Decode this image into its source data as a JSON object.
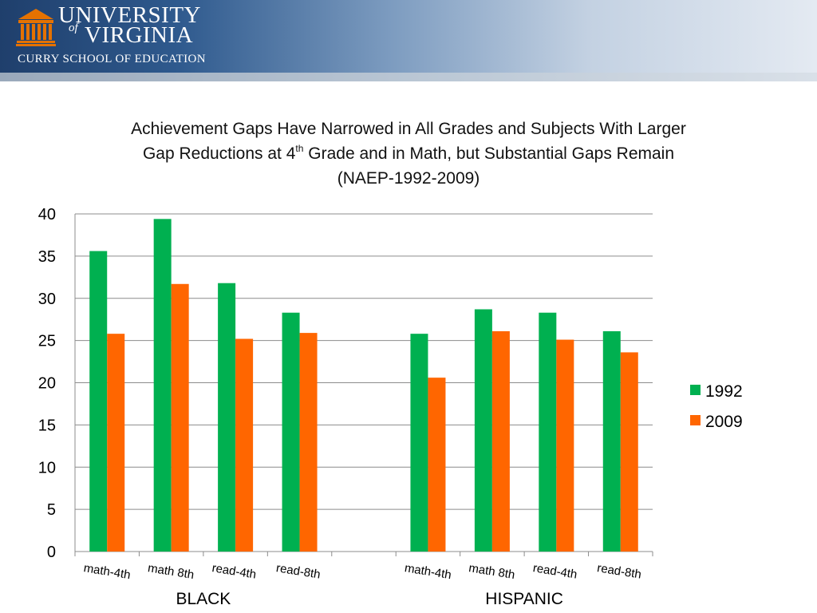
{
  "header": {
    "logo_line1": "UNIVERSITY",
    "logo_of": "of",
    "logo_line2": "VIRGINIA",
    "logo_school": "CURRY SCHOOL OF EDUCATION",
    "colors": {
      "navy": "#1f3f6c",
      "orange": "#e57200"
    }
  },
  "title": {
    "line1": "Achievement Gaps Have Narrowed in All Grades and Subjects With Larger",
    "line2_pre": "Gap Reductions at 4",
    "line2_sup": "th",
    "line2_post": " Grade and in Math, but Substantial Gaps Remain",
    "line3": "(NAEP-1992-2009)"
  },
  "chart_data": {
    "type": "bar",
    "categories": [
      "math-4th",
      "math 8th",
      "read-4th",
      "read-8th",
      "",
      "math-4th",
      "math 8th",
      "read-4th",
      "read-8th"
    ],
    "groups": [
      {
        "label": "BLACK",
        "category_indices": [
          0,
          1,
          2,
          3
        ]
      },
      {
        "label": "HISPANIC",
        "category_indices": [
          5,
          6,
          7,
          8
        ]
      }
    ],
    "series": [
      {
        "name": "1992",
        "color": "#00b050",
        "values": [
          35.6,
          39.4,
          31.8,
          28.3,
          null,
          25.8,
          28.7,
          28.3,
          26.1
        ]
      },
      {
        "name": "2009",
        "color": "#ff6600",
        "values": [
          25.8,
          31.7,
          25.2,
          25.9,
          null,
          20.6,
          26.1,
          25.1,
          23.6
        ]
      }
    ],
    "ylim": [
      0,
      40
    ],
    "yticks": [
      0,
      5,
      10,
      15,
      20,
      25,
      30,
      35,
      40
    ],
    "grid": true,
    "legend_position": "right"
  }
}
